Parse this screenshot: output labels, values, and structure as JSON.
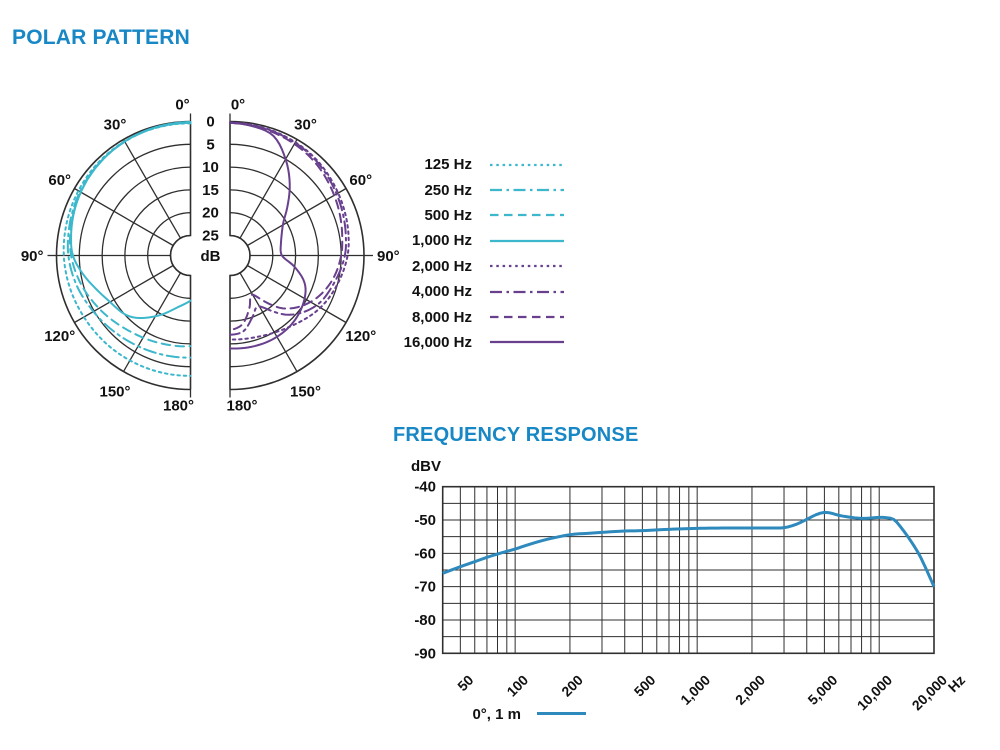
{
  "polar": {
    "title": "POLAR PATTERN",
    "db_unit_label": "dB",
    "ring_labels": [
      "0",
      "5",
      "10",
      "15",
      "20",
      "25"
    ],
    "angle_labels": [
      "0°",
      "30°",
      "60°",
      "90°",
      "120°",
      "150°",
      "180°"
    ]
  },
  "frequency_response": {
    "title": "FREQUENCY RESPONSE",
    "y_axis_label": "dBV",
    "x_axis_label": "Hz",
    "y_tick_labels": [
      "-40",
      "-50",
      "-60",
      "-70",
      "-80",
      "-90"
    ],
    "x_tick_labels": [
      "50",
      "100",
      "200",
      "500",
      "1,000",
      "2,000",
      "5,000",
      "10,000",
      "20,000"
    ],
    "legend_label": "0°, 1 m"
  },
  "colors": {
    "title_blue": "#1787c5",
    "low_freq_cyan": "#3cb7cc",
    "high_freq_purple": "#68408e",
    "response_blue": "#2e89bd",
    "grid": "#2f2f2f",
    "text": "#111111"
  },
  "chart_data": [
    {
      "type": "polar",
      "title": "POLAR PATTERN",
      "unit": "dB attenuation, 0 dB at outer ring, 5 dB per ring",
      "rings_db": [
        0,
        5,
        10,
        15,
        20,
        25
      ],
      "angle_ticks_deg": [
        0,
        30,
        60,
        90,
        120,
        150,
        180
      ],
      "layout_note": "left half = low frequencies (cyan), right half = high frequencies (purple)",
      "series": [
        {
          "name": "125 Hz",
          "side": "left",
          "style": "dotted",
          "color": "#3cb7cc",
          "points": [
            [
              0,
              0.4
            ],
            [
              20,
              0.4
            ],
            [
              40,
              0.6
            ],
            [
              60,
              1.0
            ],
            [
              80,
              1.4
            ],
            [
              90,
              1.6
            ],
            [
              105,
              2.0
            ],
            [
              120,
              2.4
            ],
            [
              140,
              2.7
            ],
            [
              160,
              2.9
            ],
            [
              180,
              3.0
            ]
          ]
        },
        {
          "name": "250 Hz",
          "side": "left",
          "style": "dashdot",
          "color": "#3cb7cc",
          "points": [
            [
              0,
              0.3
            ],
            [
              20,
              0.4
            ],
            [
              40,
              0.8
            ],
            [
              60,
              1.4
            ],
            [
              80,
              2.2
            ],
            [
              90,
              2.6
            ],
            [
              105,
              3.6
            ],
            [
              120,
              4.8
            ],
            [
              140,
              6.0
            ],
            [
              160,
              6.7
            ],
            [
              180,
              7.0
            ]
          ]
        },
        {
          "name": "500 Hz",
          "side": "left",
          "style": "dashed",
          "color": "#3cb7cc",
          "points": [
            [
              0,
              0.2
            ],
            [
              20,
              0.3
            ],
            [
              40,
              0.8
            ],
            [
              60,
              1.6
            ],
            [
              80,
              2.6
            ],
            [
              90,
              3.2
            ],
            [
              105,
              4.6
            ],
            [
              120,
              6.2
            ],
            [
              140,
              8.0
            ],
            [
              160,
              9.0
            ],
            [
              180,
              9.5
            ]
          ]
        },
        {
          "name": "1,000 Hz",
          "side": "left",
          "style": "solid",
          "color": "#3cb7cc",
          "points": [
            [
              0,
              0.1
            ],
            [
              20,
              0.3
            ],
            [
              40,
              0.8
            ],
            [
              60,
              1.6
            ],
            [
              80,
              2.8
            ],
            [
              90,
              3.6
            ],
            [
              100,
              5.5
            ],
            [
              110,
              7.5
            ],
            [
              120,
              9.0
            ],
            [
              135,
              10.5
            ],
            [
              150,
              14.0
            ],
            [
              165,
              17.5
            ],
            [
              180,
              19.5
            ]
          ]
        },
        {
          "name": "2,000 Hz",
          "side": "right",
          "style": "dotted",
          "color": "#68408e",
          "points": [
            [
              0,
              0.2
            ],
            [
              20,
              0.5
            ],
            [
              40,
              1.0
            ],
            [
              60,
              2.0
            ],
            [
              80,
              3.0
            ],
            [
              90,
              3.6
            ],
            [
              105,
              5.0
            ],
            [
              120,
              6.5
            ],
            [
              140,
              9.0
            ],
            [
              160,
              10.5
            ],
            [
              180,
              11.0
            ]
          ]
        },
        {
          "name": "4,000 Hz",
          "side": "right",
          "style": "dashdot",
          "color": "#68408e",
          "points": [
            [
              0,
              0.3
            ],
            [
              20,
              0.6
            ],
            [
              40,
              1.2
            ],
            [
              60,
              2.4
            ],
            [
              80,
              3.6
            ],
            [
              90,
              4.2
            ],
            [
              105,
              5.8
            ],
            [
              120,
              7.5
            ],
            [
              135,
              11.0
            ],
            [
              150,
              16.5
            ],
            [
              160,
              15.0
            ],
            [
              170,
              12.5
            ],
            [
              180,
              12.0
            ]
          ]
        },
        {
          "name": "8,000 Hz",
          "side": "right",
          "style": "dashed",
          "color": "#68408e",
          "points": [
            [
              0,
              0.3
            ],
            [
              20,
              0.8
            ],
            [
              40,
              1.6
            ],
            [
              60,
              3.0
            ],
            [
              80,
              4.4
            ],
            [
              90,
              5.0
            ],
            [
              105,
              6.5
            ],
            [
              120,
              9.0
            ],
            [
              135,
              13.0
            ],
            [
              150,
              19.5
            ],
            [
              160,
              17.0
            ],
            [
              170,
              14.0
            ],
            [
              180,
              13.0
            ]
          ]
        },
        {
          "name": "16,000 Hz",
          "side": "right",
          "style": "solid",
          "color": "#68408e",
          "points": [
            [
              0,
              0.3
            ],
            [
              10,
              0.6
            ],
            [
              20,
              1.5
            ],
            [
              30,
              5.0
            ],
            [
              40,
              9.0
            ],
            [
              50,
              13.0
            ],
            [
              60,
              16.0
            ],
            [
              75,
              17.8
            ],
            [
              90,
              18.0
            ],
            [
              100,
              15.0
            ],
            [
              110,
              12.0
            ],
            [
              120,
              10.5
            ],
            [
              135,
              9.3
            ],
            [
              150,
              8.8
            ],
            [
              165,
              8.8
            ],
            [
              180,
              9.0
            ]
          ]
        }
      ]
    },
    {
      "type": "line",
      "title": "FREQUENCY RESPONSE",
      "xscale": "log",
      "xlim": [
        40,
        20000
      ],
      "ylim": [
        -90,
        -40
      ],
      "xlabel": "Hz",
      "ylabel": "dBV",
      "grid": true,
      "y_gridstep": 5,
      "y_ticks_major": [
        -40,
        -50,
        -60,
        -70,
        -80,
        -90
      ],
      "x_gridlines": [
        50,
        60,
        70,
        80,
        90,
        100,
        200,
        300,
        400,
        500,
        600,
        700,
        800,
        900,
        1000,
        2000,
        3000,
        4000,
        5000,
        6000,
        7000,
        8000,
        9000,
        10000
      ],
      "x_tick_labels": [
        [
          50,
          "50"
        ],
        [
          100,
          "100"
        ],
        [
          200,
          "200"
        ],
        [
          500,
          "500"
        ],
        [
          1000,
          "1,000"
        ],
        [
          2000,
          "2,000"
        ],
        [
          5000,
          "5,000"
        ],
        [
          10000,
          "10,000"
        ],
        [
          20000,
          "20,000"
        ]
      ],
      "legend": "0°, 1 m",
      "legend_position": "bottom-left",
      "series": [
        {
          "name": "0°, 1 m",
          "color": "#2e89bd",
          "points": [
            [
              40,
              -66
            ],
            [
              50,
              -64
            ],
            [
              60,
              -62.5
            ],
            [
              70,
              -61.2
            ],
            [
              80,
              -60.2
            ],
            [
              90,
              -59.4
            ],
            [
              100,
              -58.7
            ],
            [
              120,
              -57.3
            ],
            [
              150,
              -55.8
            ],
            [
              200,
              -54.4
            ],
            [
              250,
              -54.0
            ],
            [
              300,
              -53.7
            ],
            [
              400,
              -53.3
            ],
            [
              500,
              -53.2
            ],
            [
              700,
              -52.8
            ],
            [
              1000,
              -52.5
            ],
            [
              1500,
              -52.4
            ],
            [
              2000,
              -52.4
            ],
            [
              2500,
              -52.4
            ],
            [
              3000,
              -52.3
            ],
            [
              3500,
              -51.3
            ],
            [
              4000,
              -49.8
            ],
            [
              4500,
              -48.4
            ],
            [
              5000,
              -47.7
            ],
            [
              5500,
              -48.0
            ],
            [
              6000,
              -48.6
            ],
            [
              7000,
              -49.2
            ],
            [
              8000,
              -49.5
            ],
            [
              9000,
              -49.4
            ],
            [
              10000,
              -49.2
            ],
            [
              11000,
              -49.3
            ],
            [
              12000,
              -49.8
            ],
            [
              13000,
              -51.8
            ],
            [
              15000,
              -56.5
            ],
            [
              17000,
              -61.5
            ],
            [
              20000,
              -70
            ]
          ]
        }
      ]
    }
  ]
}
